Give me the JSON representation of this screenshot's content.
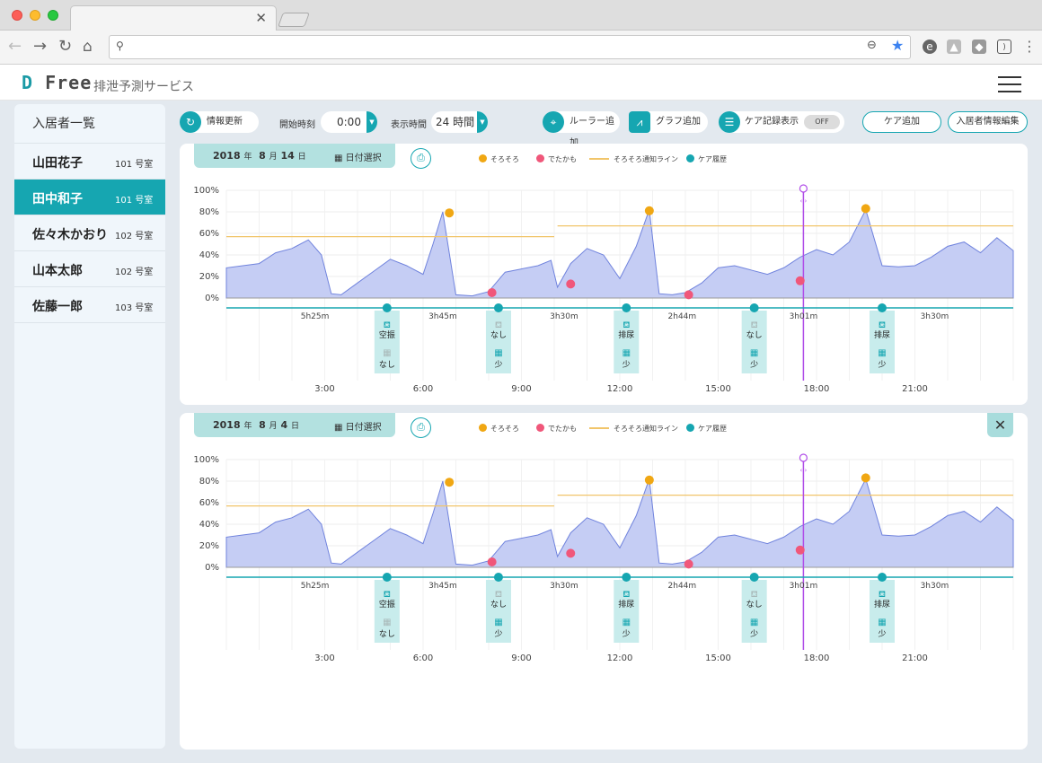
{
  "browser": {
    "url": "",
    "tab_title": "",
    "tab_close": "✕"
  },
  "app": {
    "logo_d": "D",
    "logo_rest": "Free",
    "service_name": "排泄予測サービス"
  },
  "sidebar": {
    "title": "入居者一覧",
    "residents": [
      {
        "name": "山田花子",
        "room": "101 号室",
        "active": false
      },
      {
        "name": "田中和子",
        "room": "101 号室",
        "active": true
      },
      {
        "name": "佐々木かおり",
        "room": "102 号室",
        "active": false
      },
      {
        "name": "山本太郎",
        "room": "102 号室",
        "active": false
      },
      {
        "name": "佐藤一郎",
        "room": "103 号室",
        "active": false
      }
    ]
  },
  "controls": {
    "refresh_label": "情報更新",
    "start_time_label": "開始時刻",
    "start_time_value": "0:00",
    "display_time_label": "表示時間",
    "display_time_value": "24 時間",
    "add_ruler_label": "ルーラー追加",
    "add_graph_label": "グラフ追加",
    "care_record_label": "ケア記録表示",
    "care_record_toggle": "OFF",
    "add_care_label": "ケア追加",
    "edit_resident_label": "入居者情報編集"
  },
  "colors": {
    "accent": "#16a6b1",
    "soro": "#f0a713",
    "detakamo": "#f0577a",
    "threshold": "#f1c56a",
    "care": "#16a6b1",
    "ruler": "#b04de8",
    "area": "#c5cdf4",
    "areaLine": "#7083dd"
  },
  "legend": {
    "soro": "そろそろ",
    "detakamo": "でたかも",
    "threshold": "そろそろ通知ライン",
    "care": "ケア履歴"
  },
  "panels": [
    {
      "year": "2018",
      "year_unit": "年",
      "month": "8",
      "month_unit": "月",
      "day": "14",
      "day_unit": "日",
      "date_pick_label": "日付選択",
      "closable": false
    },
    {
      "year": "2018",
      "year_unit": "年",
      "month": "8",
      "month_unit": "月",
      "day": "4",
      "day_unit": "日",
      "date_pick_label": "日付選択",
      "closable": true,
      "close_label": "✕"
    }
  ],
  "chart_data": {
    "type": "area",
    "y_ticks": [
      "100%",
      "80%",
      "60%",
      "40%",
      "20%",
      "0%"
    ],
    "ylim": [
      0,
      100
    ],
    "x_range_hours": [
      0,
      24
    ],
    "x_ticks": [
      "3:00",
      "6:00",
      "9:00",
      "12:00",
      "15:00",
      "18:00",
      "21:00"
    ],
    "x_tick_hours": [
      3,
      6,
      9,
      12,
      15,
      18,
      21
    ],
    "series_x_hours": [
      0,
      0.5,
      1,
      1.5,
      2,
      2.5,
      2.9,
      3.2,
      3.5,
      4,
      4.5,
      5,
      5.5,
      6,
      6.3,
      6.6,
      7,
      7.5,
      8,
      8.5,
      9,
      9.5,
      9.9,
      10.1,
      10.5,
      11,
      11.5,
      12,
      12.5,
      12.9,
      13.2,
      13.6,
      14,
      14.5,
      15,
      15.5,
      16,
      16.5,
      17,
      17.5,
      18,
      18.5,
      19,
      19.5,
      20,
      20.5,
      21,
      21.5,
      22,
      22.5,
      23,
      23.5,
      24
    ],
    "series_y": [
      28,
      30,
      32,
      42,
      46,
      54,
      40,
      4,
      3,
      14,
      25,
      36,
      30,
      22,
      50,
      80,
      3,
      2,
      6,
      24,
      27,
      30,
      35,
      10,
      32,
      46,
      40,
      18,
      48,
      82,
      4,
      3,
      5,
      14,
      28,
      30,
      26,
      22,
      28,
      38,
      45,
      40,
      52,
      82,
      30,
      29,
      30,
      38,
      48,
      52,
      42,
      56,
      44
    ],
    "intervals": [
      "5h25m",
      "3h45m",
      "3h30m",
      "2h44m",
      "3h01m",
      "3h30m"
    ],
    "interval_hours": [
      2.7,
      6.6,
      10.3,
      13.9,
      17.6,
      21.6
    ],
    "thresholds": [
      {
        "from": 0,
        "to": 10,
        "value": 57
      },
      {
        "from": 10.1,
        "to": 24,
        "value": 67
      }
    ],
    "soro_points": [
      {
        "x": 6.8,
        "y": 79
      },
      {
        "x": 12.9,
        "y": 81
      },
      {
        "x": 19.5,
        "y": 83
      }
    ],
    "detakamo_points": [
      {
        "x": 8.1,
        "y": 5
      },
      {
        "x": 10.5,
        "y": 13
      },
      {
        "x": 14.1,
        "y": 3
      },
      {
        "x": 17.5,
        "y": 16
      }
    ],
    "ruler_hour": 17.6,
    "care_events": [
      {
        "x": 4.9,
        "top": "空振",
        "bottom": "なし",
        "top_icon": "cup-icon",
        "bottom_icon": "pad-icon",
        "bottom_faded": true
      },
      {
        "x": 8.3,
        "top": "なし",
        "bottom": "少",
        "top_icon": "cup-icon",
        "bottom_icon": "pad-icon",
        "top_faded": true
      },
      {
        "x": 12.2,
        "top": "排尿",
        "bottom": "少",
        "top_icon": "cup-icon",
        "bottom_icon": "pad-icon"
      },
      {
        "x": 16.1,
        "top": "なし",
        "bottom": "少",
        "top_icon": "cup-icon",
        "bottom_icon": "pad-icon",
        "top_faded": true
      },
      {
        "x": 20.0,
        "top": "排尿",
        "bottom": "少",
        "top_icon": "cup-icon",
        "bottom_icon": "pad-icon"
      }
    ]
  }
}
